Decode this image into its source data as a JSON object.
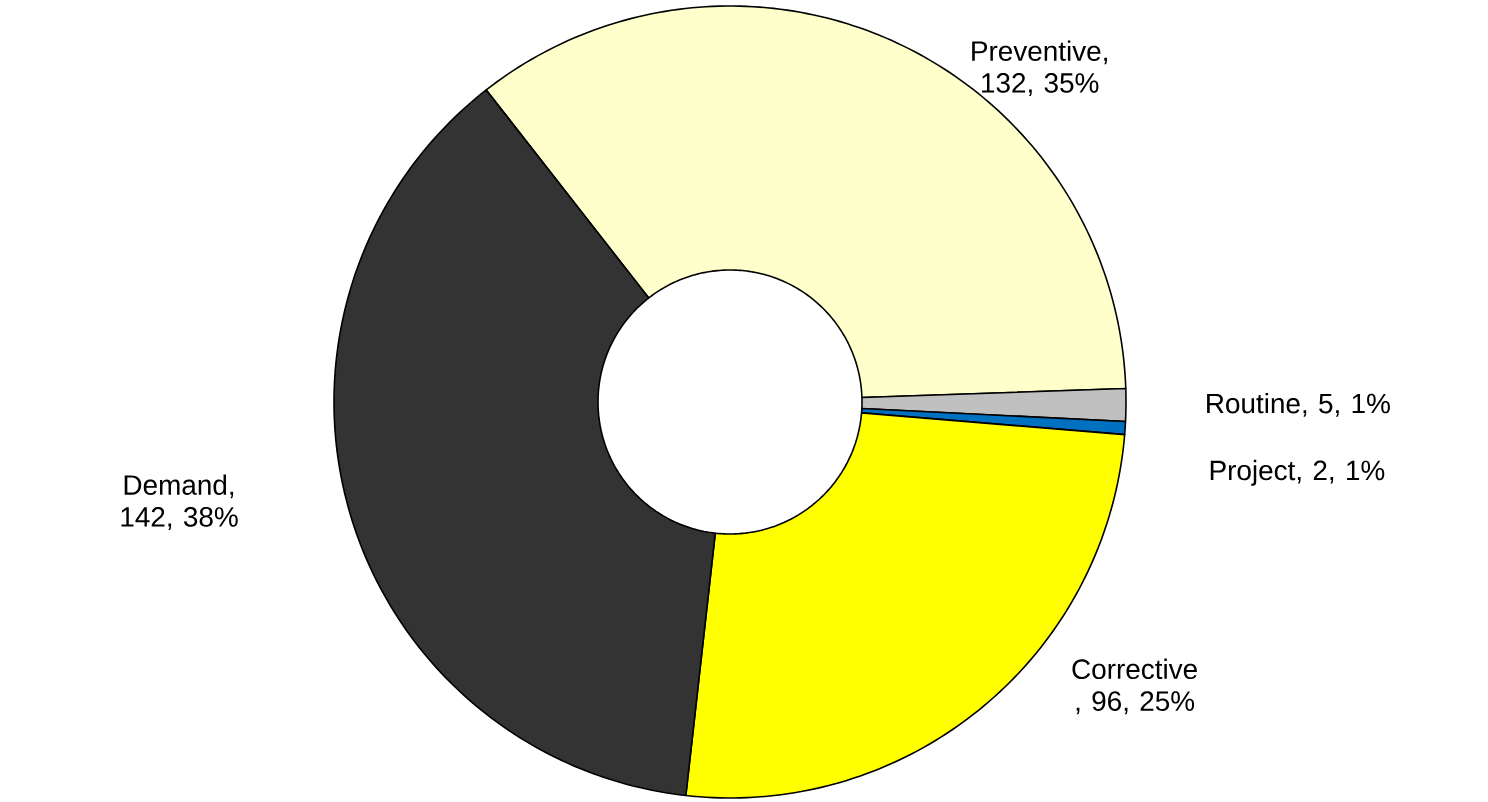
{
  "chart_data": {
    "type": "donut",
    "categories": [
      "Preventive",
      "Routine",
      "Project",
      "Corrective",
      "Demand"
    ],
    "values": [
      132,
      5,
      2,
      96,
      142
    ],
    "colors": [
      "#ffffcc",
      "#c0c0c0",
      "#0070c0",
      "#ffff00",
      "#333333"
    ],
    "value_labels": [
      ", 132, 35%",
      ", 5, 1%",
      ", 2, 1%",
      " , 96, 25%",
      ", 142, 38%"
    ]
  }
}
